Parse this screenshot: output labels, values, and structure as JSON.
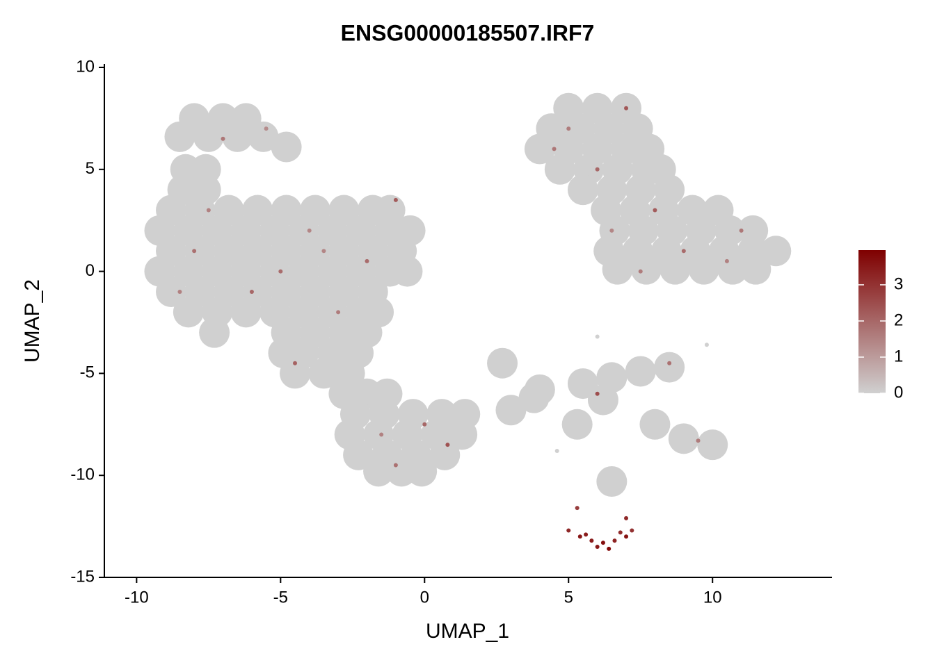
{
  "chart_data": {
    "type": "scatter",
    "title": "ENSG00000185507.IRF7",
    "x_label": "UMAP_1",
    "y_label": "UMAP_2",
    "xlim": [
      -11.12,
      14.15
    ],
    "ylim": [
      -15,
      10.17
    ],
    "xticks": [
      -10,
      -5,
      0,
      5,
      10
    ],
    "yticks": [
      -15,
      -10,
      -5,
      0,
      5,
      10
    ],
    "color_low": "#d0d0d0",
    "color_high": "#7f0000",
    "colorbar_lim": [
      0,
      3.96
    ],
    "colorbar_ticks": [
      0,
      1,
      2,
      3
    ],
    "x": [
      -8,
      -7,
      -6.2,
      -8.5,
      -7.5,
      -6.5,
      -5.6,
      -4.8,
      -8.3,
      -7.6,
      -8.4,
      -7.6,
      -8.8,
      -7.8,
      -6.8,
      -5.8,
      -4.8,
      -3.8,
      -2.8,
      -1.8,
      -1.2,
      -9.2,
      -8.2,
      -7.2,
      -6.2,
      -5.2,
      -4.2,
      -3.2,
      -2.2,
      -1.2,
      -0.5,
      -8.8,
      -7.8,
      -6.8,
      -5.8,
      -4.8,
      -3.8,
      -2.8,
      -1.8,
      -0.8,
      -9.2,
      -8.2,
      -7.2,
      -6.2,
      -5.2,
      -4.2,
      -3.2,
      -2.2,
      -1.2,
      -0.6,
      -8.8,
      -7.8,
      -6.8,
      -5.8,
      -4.8,
      -3.8,
      -2.8,
      -1.8,
      -8.2,
      -7.2,
      -6.2,
      -5.2,
      -4.2,
      -3.2,
      -2.2,
      -1.6,
      -7.3,
      -4.8,
      -3.8,
      -2.8,
      -2,
      -4.9,
      -4.2,
      -3.2,
      -2.3,
      -4.5,
      -3.5,
      -2.6,
      -2.8,
      -2,
      -1.3,
      -2.4,
      -1.4,
      -0.4,
      0.6,
      1.4,
      -2.6,
      -1.6,
      -0.6,
      0.4,
      1.3,
      -2.3,
      -1.3,
      -0.3,
      0.7,
      -1.6,
      -0.8,
      -0.1,
      5,
      6,
      7,
      4.4,
      5.4,
      6.4,
      7.4,
      4,
      5,
      6,
      7,
      7.8,
      4.7,
      5.7,
      6.7,
      7.7,
      8.2,
      5.5,
      6.5,
      7.5,
      8.5,
      6.3,
      7.3,
      8.3,
      9.3,
      10.2,
      6.6,
      7.6,
      8.6,
      9.6,
      10.6,
      11.4,
      6.4,
      7.4,
      8.4,
      9.4,
      10.4,
      11.4,
      12.2,
      6.7,
      7.7,
      8.7,
      9.7,
      10.7,
      11.5,
      8.5,
      7.5,
      6.5,
      5.5,
      6.2,
      6,
      9.8,
      4,
      3.8,
      9,
      10,
      8,
      5.3,
      4.6,
      3,
      2.7,
      6.5,
      5,
      5.4,
      5.8,
      6.2,
      6.6,
      7,
      7.2,
      5.6,
      6.4,
      6,
      6.8,
      5.3,
      7,
      -7.5,
      -8,
      -6,
      -4,
      -3,
      -2,
      -1,
      -5.5,
      -7,
      -4.5,
      -1.5,
      0.8,
      -1,
      5,
      6,
      7,
      6.5,
      9,
      10.5,
      11,
      8,
      8.5,
      6,
      9.5,
      -8.5,
      -5,
      -3.5,
      4.5,
      7.5,
      0
    ],
    "y": [
      7.5,
      7.5,
      7.5,
      6.6,
      6.6,
      6.6,
      6.6,
      6.1,
      5,
      5,
      4,
      4,
      3,
      3,
      3,
      3,
      3,
      3,
      3,
      3,
      3,
      2,
      2,
      2,
      2,
      2,
      2,
      2,
      2,
      2,
      2,
      1,
      1,
      1,
      1,
      1,
      1,
      1,
      1,
      1,
      0,
      0,
      0,
      0,
      0,
      0,
      0,
      0,
      0,
      0,
      -1,
      -1,
      -1,
      -1,
      -1,
      -1,
      -1,
      -1,
      -2,
      -2,
      -2,
      -2,
      -2,
      -2,
      -2,
      -2,
      -3,
      -3,
      -3,
      -3,
      -3,
      -4,
      -4,
      -4,
      -4,
      -5,
      -5,
      -5,
      -6,
      -6,
      -6,
      -7,
      -7,
      -7,
      -7,
      -7,
      -8,
      -8,
      -8,
      -8,
      -8,
      -9,
      -9,
      -9,
      -9,
      -9.8,
      -9.8,
      -9.8,
      8,
      8,
      8,
      7,
      7,
      7,
      7,
      6,
      6,
      6,
      6,
      6,
      5,
      5,
      5,
      5,
      5,
      4,
      4,
      4,
      4,
      3,
      3,
      3,
      3,
      3,
      2,
      2,
      2,
      2,
      2,
      2,
      1,
      1,
      1,
      1,
      1,
      1,
      1,
      0.1,
      0.1,
      0.1,
      0.1,
      0.1,
      0.1,
      -4.7,
      -4.9,
      -5.2,
      -5.5,
      -6.3,
      -3.2,
      -3.6,
      -5.8,
      -6.2,
      -8.2,
      -8.5,
      -7.5,
      -7.5,
      -8.8,
      -6.8,
      -4.5,
      -10.3,
      -12.7,
      -13,
      -13.2,
      -13.3,
      -13.2,
      -13,
      -12.7,
      -12.9,
      -13.6,
      -13.5,
      -12.8,
      -11.6,
      -12.1,
      3,
      1,
      -1,
      2,
      -2,
      0.5,
      3.5,
      7,
      6.5,
      -4.5,
      -8,
      -8.5,
      -9.5,
      7,
      5,
      8,
      2,
      1,
      0.5,
      2,
      3,
      -4.5,
      -6,
      -8.3,
      -1,
      0,
      1,
      6,
      0,
      -7.5
    ],
    "expression": [
      0,
      0,
      0,
      0,
      0,
      0,
      0,
      0,
      0,
      0,
      0,
      0,
      0,
      0,
      0,
      0,
      0,
      0,
      0,
      0,
      0,
      0,
      0,
      0,
      0,
      0,
      0,
      0,
      0,
      0,
      0,
      0,
      0,
      0,
      0,
      0,
      0,
      0,
      0,
      0,
      0,
      0,
      0,
      0,
      0,
      0,
      0,
      0,
      0,
      0,
      0,
      0,
      0,
      0,
      0,
      0,
      0,
      0,
      0,
      0,
      0,
      0,
      0,
      0,
      0,
      0,
      0,
      0,
      0,
      0,
      0,
      0,
      0,
      0,
      0,
      0,
      0,
      0,
      0,
      0,
      0,
      0,
      0,
      0,
      0,
      0,
      0,
      0,
      0,
      0,
      0,
      0,
      0,
      0,
      0,
      0,
      0,
      0,
      0,
      0,
      0,
      0,
      0,
      0,
      0,
      0,
      0,
      0,
      0,
      0,
      0,
      0,
      0,
      0,
      0,
      0,
      0,
      0,
      0,
      0,
      0,
      0,
      0,
      0,
      0,
      0,
      0,
      0,
      0,
      0,
      0,
      0,
      0,
      0,
      0,
      0,
      0,
      0,
      0,
      0,
      0,
      0,
      0,
      0,
      0,
      0,
      0,
      0,
      0,
      0,
      0,
      0,
      0,
      0,
      0,
      0,
      0,
      0,
      0,
      0,
      3.2,
      3.5,
      3.4,
      3.7,
      3.3,
      3.6,
      3,
      3.4,
      3.8,
      3.5,
      3.1,
      2.8,
      3.2,
      1.5,
      1.8,
      2,
      1.4,
      1.6,
      1.9,
      2.2,
      1.3,
      1.7,
      2.1,
      1.5,
      2.4,
      1.8,
      1.6,
      2,
      2.3,
      1.4,
      1.9,
      1.5,
      1.7,
      2.2,
      1.8,
      2.5,
      1.6,
      1.5,
      1.9,
      1.4,
      1.7,
      1.6,
      2
    ]
  }
}
